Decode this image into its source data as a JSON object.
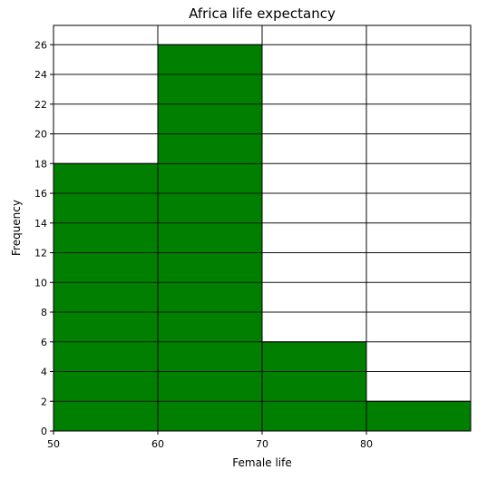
{
  "chart_data": {
    "type": "bar",
    "title": "Africa life expectancy",
    "xlabel": "Female life",
    "ylabel": "Frequency",
    "bins": [
      {
        "start": 50,
        "end": 60,
        "value": 18
      },
      {
        "start": 60,
        "end": 70,
        "value": 26
      },
      {
        "start": 70,
        "end": 80,
        "value": 6
      },
      {
        "start": 80,
        "end": 90,
        "value": 2
      }
    ],
    "xlim": [
      50,
      90
    ],
    "ylim": [
      0,
      27.3
    ],
    "x_ticks": [
      50,
      60,
      70,
      80
    ],
    "y_ticks": [
      0,
      2,
      4,
      6,
      8,
      10,
      12,
      14,
      16,
      18,
      20,
      22,
      24,
      26
    ],
    "grid": true,
    "colors": {
      "bar": "#007f00",
      "edge": "#000000",
      "grid": "#000000"
    }
  }
}
